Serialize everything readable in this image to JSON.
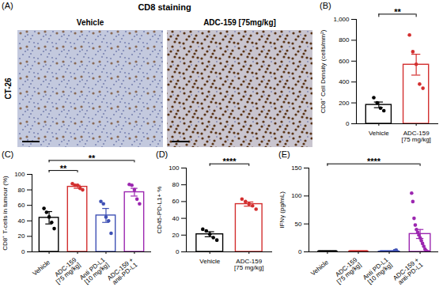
{
  "chart_data": [
    {
      "type": "image",
      "panel_label": "(A)",
      "title": "CD8 staining",
      "ylabel": "CT-26",
      "categories": [
        "Vehicle",
        "ADC-159 [75mg/kg]"
      ]
    },
    {
      "type": "bar",
      "panel_label": "(B)",
      "ylabel": "CD8⁺ Cell Density (cells/mm²)",
      "categories": [
        "Vehicle",
        "ADC-159\n[75 mg/kg]"
      ],
      "values": [
        181,
        566
      ],
      "error": [
        27,
        100
      ],
      "points": [
        [
          250,
          200,
          150,
          125
        ],
        [
          850,
          690,
          570,
          380,
          340
        ]
      ],
      "colors": [
        "#000000",
        "#d32f2f"
      ],
      "ylim": [
        0,
        1000
      ],
      "yticks": [
        0,
        200,
        400,
        600,
        800,
        1000
      ],
      "annotations": [
        {
          "text": "**",
          "between": [
            0,
            1
          ]
        }
      ]
    },
    {
      "type": "bar",
      "panel_label": "(C)",
      "ylabel": "CD8⁺ T-cells in tumour (%)",
      "categories": [
        "Vehicle",
        "ADC-159\n[75 mg/kg]",
        "Anti PD-L1\n[10 mg/kg]",
        "ADC-159 +\nanti-PD-L1"
      ],
      "values": [
        44,
        84,
        47,
        77
      ],
      "error": [
        8,
        2,
        9,
        5
      ],
      "points": [
        [
          56,
          51,
          45,
          38,
          30
        ],
        [
          88,
          86,
          86,
          82,
          80
        ],
        [
          65,
          62,
          45,
          40,
          24
        ],
        [
          87,
          86,
          80,
          68,
          62
        ]
      ],
      "colors": [
        "#000000",
        "#d32f2f",
        "#3f51b5",
        "#9c27b0"
      ],
      "ylim": [
        0,
        100
      ],
      "yticks": [
        0,
        20,
        40,
        60,
        80,
        100
      ],
      "annotations": [
        {
          "text": "**",
          "between": [
            0,
            1
          ]
        },
        {
          "text": "**",
          "between": [
            0,
            3
          ]
        }
      ]
    },
    {
      "type": "bar",
      "panel_label": "(D)",
      "ylabel": "CD45-PD-L1+ %",
      "categories": [
        "Vehicle",
        "ADC-159\n[75 mg/kg]"
      ],
      "values": [
        21,
        57
      ],
      "error": [
        3,
        2.5
      ],
      "points": [
        [
          27,
          25,
          21,
          17,
          14
        ],
        [
          63,
          60,
          57,
          55,
          51
        ]
      ],
      "colors": [
        "#000000",
        "#d32f2f"
      ],
      "ylim": [
        0,
        100
      ],
      "yticks": [
        0,
        20,
        40,
        60,
        80,
        100
      ],
      "annotations": [
        {
          "text": "****",
          "between": [
            0,
            1
          ]
        }
      ]
    },
    {
      "type": "bar",
      "panel_label": "(E)",
      "ylabel": "IFNγ (pg/mL)",
      "categories": [
        "Vehicle",
        "ADC-159\n[75 mg/kg]",
        "Anti PD-L1\n[10 mg/kg]",
        "ADC-159 +\nanti-PD-L1"
      ],
      "values": [
        0,
        0,
        0.4,
        32
      ],
      "error": [
        0,
        0,
        0.3,
        8
      ],
      "points": [
        [
          0,
          0,
          0,
          0,
          0,
          0,
          0,
          0,
          0,
          0,
          0,
          0
        ],
        [
          0,
          0,
          0,
          0,
          0,
          0,
          0,
          0,
          0,
          0,
          0,
          0
        ],
        [
          0,
          0,
          0,
          0,
          0,
          0,
          0,
          0,
          0,
          2,
          3,
          0
        ],
        [
          105,
          90,
          60,
          48,
          40,
          35,
          30,
          25,
          20,
          15,
          10,
          5,
          2,
          0,
          0
        ]
      ],
      "colors": [
        "#000000",
        "#d32f2f",
        "#3f51b5",
        "#9c27b0"
      ],
      "ylim": [
        0,
        150
      ],
      "yticks": [
        0,
        50,
        100,
        150
      ],
      "annotations": [
        {
          "text": "****",
          "between": [
            0,
            3
          ]
        }
      ]
    }
  ]
}
